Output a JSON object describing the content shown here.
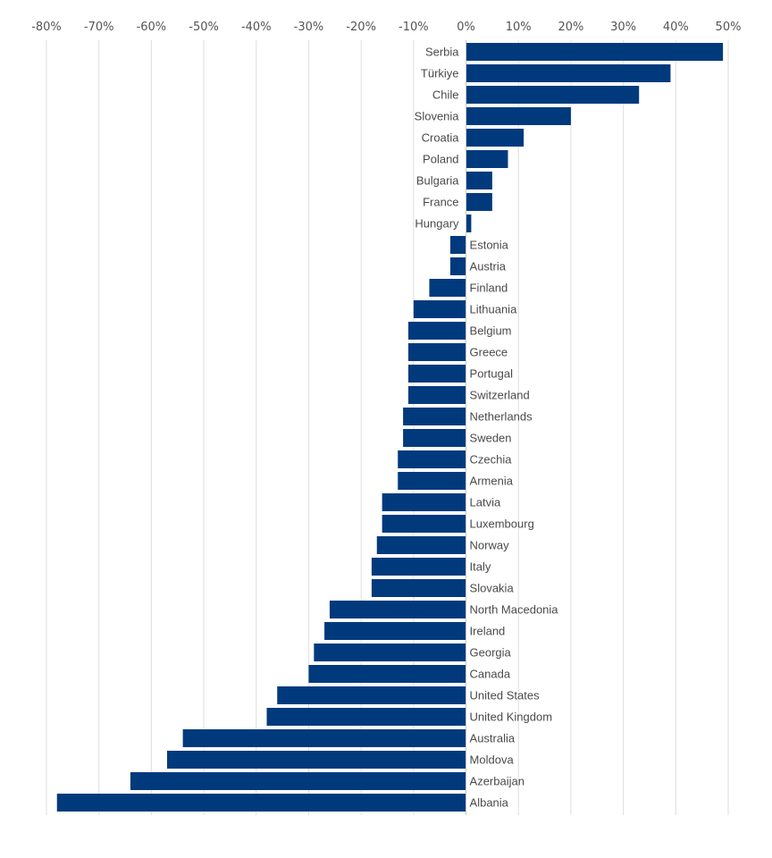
{
  "chart_data": {
    "type": "bar",
    "orientation": "horizontal",
    "title": "",
    "xlabel": "",
    "ylabel": "",
    "xlim": [
      -80,
      50
    ],
    "x_tick_values": [
      -80,
      -70,
      -60,
      -50,
      -40,
      -30,
      -20,
      -10,
      0,
      10,
      20,
      30,
      40,
      50
    ],
    "x_tick_labels": [
      "-80%",
      "-70%",
      "-60%",
      "-50%",
      "-40%",
      "-30%",
      "-20%",
      "-10%",
      "0%",
      "10%",
      "20%",
      "30%",
      "40%",
      "50%"
    ],
    "x_axis_position": "top",
    "grid": "vertical",
    "legend": "none",
    "bar_color": "#003a7d",
    "categories": [
      "Serbia",
      "Türkiye",
      "Chile",
      "Slovenia",
      "Croatia",
      "Poland",
      "Bulgaria",
      "France",
      "Hungary",
      "Estonia",
      "Austria",
      "Finland",
      "Lithuania",
      "Belgium",
      "Greece",
      "Portugal",
      "Switzerland",
      "Netherlands",
      "Sweden",
      "Czechia",
      "Armenia",
      "Latvia",
      "Luxembourg",
      "Norway",
      "Italy",
      "Slovakia",
      "North Macedonia",
      "Ireland",
      "Georgia",
      "Canada",
      "United States",
      "United Kingdom",
      "Australia",
      "Moldova",
      "Azerbaijan",
      "Albania"
    ],
    "values": [
      49,
      39,
      33,
      20,
      11,
      8,
      5,
      5,
      1,
      -3,
      -3,
      -7,
      -10,
      -11,
      -11,
      -11,
      -11,
      -12,
      -12,
      -13,
      -13,
      -16,
      -16,
      -17,
      -18,
      -18,
      -26,
      -27,
      -29,
      -30,
      -36,
      -38,
      -54,
      -57,
      -64,
      -78
    ]
  }
}
